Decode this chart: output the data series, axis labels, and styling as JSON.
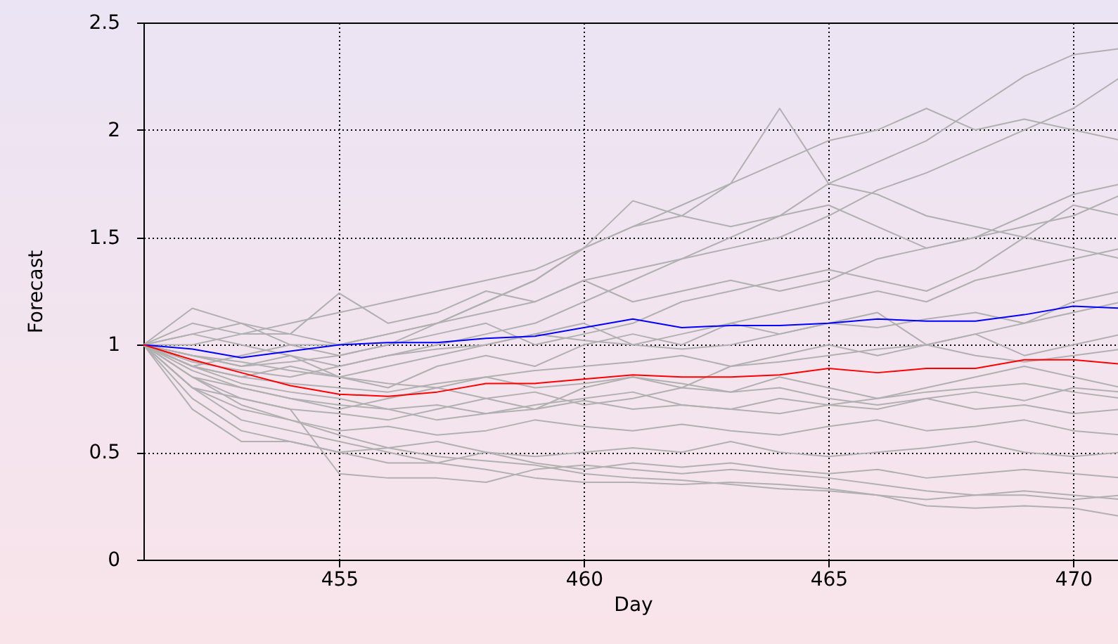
{
  "chart_data": {
    "type": "line",
    "xlabel": "Day",
    "ylabel": "Forecast",
    "x": [
      451,
      452,
      453,
      454,
      455,
      456,
      457,
      458,
      459,
      460,
      461,
      462,
      463,
      464,
      465,
      466,
      467,
      468,
      469,
      470,
      471
    ],
    "xlim": [
      451,
      471
    ],
    "xticks": [
      455,
      460,
      465,
      470
    ],
    "ylim": [
      0,
      2.5
    ],
    "yticks": [
      0,
      0.5,
      1,
      1.5,
      2,
      2.5
    ],
    "grid": true,
    "line_style": "solid",
    "series": [
      {
        "color": "#b0b0b0",
        "values": [
          1,
          1.05,
          1.0,
          0.95,
          0.9,
          0.95,
          1.0,
          1.05,
          1.1,
          1.2,
          1.3,
          1.4,
          1.5,
          1.6,
          1.75,
          1.85,
          1.95,
          2.1,
          2.25,
          2.35,
          2.38
        ]
      },
      {
        "color": "#b0b0b0",
        "values": [
          1,
          0.95,
          0.9,
          0.92,
          0.95,
          1.0,
          1.1,
          1.2,
          1.3,
          1.45,
          1.55,
          1.6,
          1.75,
          2.1,
          1.75,
          1.7,
          1.6,
          1.55,
          1.5,
          1.45,
          1.4
        ]
      },
      {
        "color": "#b0b0b0",
        "values": [
          1,
          1.0,
          1.05,
          1.1,
          1.15,
          1.2,
          1.25,
          1.3,
          1.35,
          1.45,
          1.55,
          1.65,
          1.75,
          1.85,
          1.95,
          2.0,
          2.1,
          2.0,
          2.05,
          2.0,
          1.95
        ]
      },
      {
        "color": "#b0b0b0",
        "values": [
          1,
          0.9,
          0.95,
          1.0,
          1.0,
          1.05,
          1.1,
          1.2,
          1.3,
          1.45,
          1.67,
          1.6,
          1.55,
          1.6,
          1.65,
          1.55,
          1.45,
          1.5,
          1.6,
          1.7,
          1.75
        ]
      },
      {
        "color": "#b0b0b0",
        "values": [
          1,
          1.1,
          1.05,
          1.05,
          1.24,
          1.1,
          1.15,
          1.25,
          1.2,
          1.3,
          1.35,
          1.4,
          1.45,
          1.5,
          1.6,
          1.72,
          1.8,
          1.9,
          2.0,
          2.1,
          2.25
        ]
      },
      {
        "color": "#b0b0b0",
        "values": [
          1,
          1.17,
          1.1,
          1.0,
          0.95,
          1.0,
          1.05,
          1.1,
          1.0,
          1.05,
          1.1,
          1.2,
          1.25,
          1.3,
          1.35,
          1.3,
          1.25,
          1.35,
          1.5,
          1.65,
          1.6
        ]
      },
      {
        "color": "#b0b0b0",
        "values": [
          1,
          1.05,
          1.1,
          1.05,
          1.0,
          1.05,
          1.1,
          1.15,
          1.2,
          1.3,
          1.2,
          1.25,
          1.3,
          1.25,
          1.3,
          1.4,
          1.45,
          1.5,
          1.55,
          1.6,
          1.7
        ]
      },
      {
        "color": "#b0b0b0",
        "values": [
          1,
          0.95,
          0.9,
          0.95,
          0.85,
          0.9,
          0.95,
          1.0,
          1.05,
          1.1,
          1.0,
          1.05,
          1.1,
          1.15,
          1.2,
          1.25,
          1.2,
          1.3,
          1.35,
          1.4,
          1.45
        ]
      },
      {
        "color": "#b0b0b0",
        "values": [
          1,
          0.9,
          0.85,
          0.9,
          0.85,
          0.8,
          0.9,
          0.95,
          0.9,
          1.0,
          1.05,
          1.0,
          1.1,
          1.05,
          1.1,
          1.15,
          1.0,
          1.05,
          1.1,
          1.2,
          1.25
        ]
      },
      {
        "color": "#b0b0b0",
        "values": [
          1,
          0.85,
          0.8,
          0.75,
          0.7,
          0.75,
          0.8,
          0.75,
          0.7,
          0.8,
          0.85,
          0.8,
          0.9,
          0.95,
          1.0,
          0.95,
          1.0,
          1.05,
          0.95,
          1.0,
          1.05
        ]
      },
      {
        "color": "#b0b0b0",
        "values": [
          1,
          0.8,
          0.75,
          0.7,
          0.68,
          0.65,
          0.7,
          0.75,
          0.78,
          0.72,
          0.75,
          0.8,
          0.78,
          0.85,
          0.8,
          0.75,
          0.8,
          0.85,
          0.9,
          0.85,
          0.8
        ]
      },
      {
        "color": "#b0b0b0",
        "values": [
          1,
          0.9,
          0.82,
          0.78,
          0.75,
          0.7,
          0.72,
          0.68,
          0.7,
          0.74,
          0.7,
          0.72,
          0.7,
          0.75,
          0.72,
          0.7,
          0.75,
          0.78,
          0.74,
          0.8,
          0.78
        ]
      },
      {
        "color": "#b0b0b0",
        "values": [
          1,
          0.8,
          0.7,
          0.65,
          0.6,
          0.62,
          0.58,
          0.6,
          0.65,
          0.62,
          0.6,
          0.63,
          0.6,
          0.58,
          0.62,
          0.65,
          0.6,
          0.62,
          0.65,
          0.6,
          0.58
        ]
      },
      {
        "color": "#b0b0b0",
        "values": [
          1,
          0.75,
          0.6,
          0.55,
          0.5,
          0.52,
          0.55,
          0.5,
          0.48,
          0.5,
          0.52,
          0.5,
          0.55,
          0.5,
          0.48,
          0.5,
          0.52,
          0.55,
          0.5,
          0.48,
          0.5
        ]
      },
      {
        "color": "#b0b0b0",
        "values": [
          1,
          0.7,
          0.55,
          0.55,
          0.5,
          0.45,
          0.45,
          0.5,
          0.45,
          0.42,
          0.45,
          0.43,
          0.45,
          0.42,
          0.4,
          0.42,
          0.38,
          0.4,
          0.42,
          0.4,
          0.38
        ]
      },
      {
        "color": "#b0b0b0",
        "values": [
          1,
          0.8,
          0.65,
          0.6,
          0.55,
          0.5,
          0.45,
          0.42,
          0.38,
          0.36,
          0.36,
          0.35,
          0.36,
          0.35,
          0.33,
          0.3,
          0.28,
          0.3,
          0.3,
          0.28,
          0.3
        ]
      },
      {
        "color": "#b0b0b0",
        "values": [
          1,
          0.85,
          0.72,
          0.65,
          0.58,
          0.52,
          0.48,
          0.46,
          0.44,
          0.4,
          0.38,
          0.37,
          0.35,
          0.33,
          0.32,
          0.3,
          0.25,
          0.24,
          0.25,
          0.24,
          0.2
        ]
      },
      {
        "color": "#b0b0b0",
        "values": [
          1,
          0.85,
          0.75,
          0.7,
          0.4,
          0.38,
          0.38,
          0.36,
          0.42,
          0.44,
          0.42,
          0.4,
          0.42,
          0.4,
          0.38,
          0.35,
          0.32,
          0.3,
          0.32,
          0.3,
          0.28
        ]
      },
      {
        "color": "#b0b0b0",
        "values": [
          1,
          0.95,
          0.92,
          0.88,
          0.85,
          0.82,
          0.8,
          0.85,
          0.88,
          0.9,
          0.92,
          0.95,
          0.9,
          0.92,
          0.95,
          0.98,
          1.0,
          0.95,
          0.92,
          0.95,
          0.98
        ]
      },
      {
        "color": "#b0b0b0",
        "values": [
          1,
          0.9,
          0.85,
          0.82,
          0.8,
          0.78,
          0.82,
          0.85,
          0.8,
          0.82,
          0.85,
          0.82,
          0.78,
          0.8,
          0.75,
          0.72,
          0.75,
          0.7,
          0.72,
          0.68,
          0.7
        ]
      },
      {
        "color": "#b0b0b0",
        "values": [
          1,
          0.88,
          0.8,
          0.75,
          0.72,
          0.7,
          0.65,
          0.68,
          0.72,
          0.75,
          0.78,
          0.72,
          0.7,
          0.68,
          0.72,
          0.75,
          0.78,
          0.8,
          0.82,
          0.78,
          0.75
        ]
      },
      {
        "color": "#b0b0b0",
        "values": [
          1,
          0.92,
          0.88,
          0.85,
          0.9,
          0.95,
          0.98,
          1.0,
          1.05,
          1.02,
          1.0,
          0.98,
          1.0,
          1.05,
          1.1,
          1.08,
          1.12,
          1.15,
          1.1,
          1.15,
          1.2
        ]
      },
      {
        "color": "#0000ff",
        "values": [
          1.0,
          0.98,
          0.94,
          0.97,
          1.0,
          1.01,
          1.01,
          1.03,
          1.04,
          1.08,
          1.12,
          1.08,
          1.09,
          1.09,
          1.1,
          1.12,
          1.11,
          1.11,
          1.14,
          1.18,
          1.17
        ]
      },
      {
        "color": "#ff0000",
        "values": [
          1.0,
          0.93,
          0.87,
          0.81,
          0.77,
          0.76,
          0.78,
          0.82,
          0.82,
          0.84,
          0.86,
          0.85,
          0.85,
          0.86,
          0.89,
          0.87,
          0.89,
          0.89,
          0.93,
          0.93,
          0.91
        ]
      }
    ]
  }
}
